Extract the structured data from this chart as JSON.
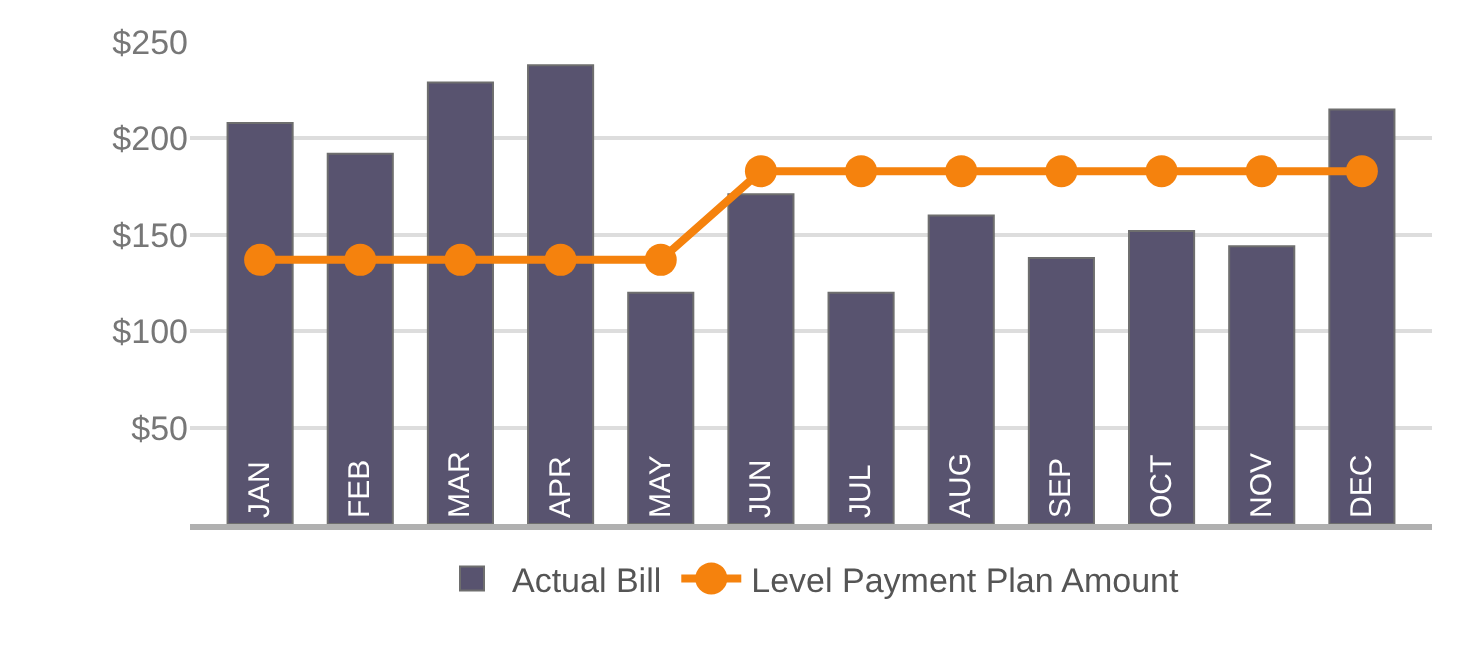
{
  "chart_data": {
    "type": "bar",
    "categories": [
      "JAN",
      "FEB",
      "MAR",
      "APR",
      "MAY",
      "JUN",
      "JUL",
      "AUG",
      "SEP",
      "OCT",
      "NOV",
      "DEC"
    ],
    "series": [
      {
        "name": "Actual Bill",
        "color": "#58536f",
        "values": [
          208,
          192,
          229,
          238,
          120,
          171,
          120,
          160,
          138,
          152,
          144,
          215
        ]
      },
      {
        "name": "Level Payment Plan Amount",
        "type": "line",
        "color": "#f5820d",
        "marker": "circle",
        "values": [
          137,
          137,
          137,
          137,
          137,
          183,
          183,
          183,
          183,
          183,
          183,
          183
        ]
      }
    ],
    "ylim": [
      0,
      250
    ],
    "yticks": [
      {
        "value": 50,
        "label": "$50"
      },
      {
        "value": 100,
        "label": "$100"
      },
      {
        "value": 150,
        "label": "$150"
      },
      {
        "value": 200,
        "label": "$200"
      },
      {
        "value": 250,
        "label": "$250"
      }
    ],
    "grid": "y",
    "legend": "bottom",
    "tick_labels": "y"
  }
}
